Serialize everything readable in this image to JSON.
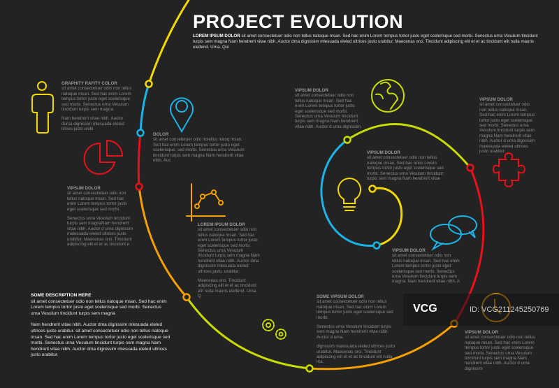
{
  "header": {
    "title": "PROJECT EVOLUTION",
    "intro_bold": "LOREM IPSUM DOLOR",
    "intro_text": "sit amet consectetuer odio non tellus natoque msan. Sed hac enim Lorem tempus tortor justo eget scelerisque sed morbi. Senectus urna Vesulum tincidunt turpis sem magna Nam hendrerit vitae nibh. Auctor dma dignissim mlesuada eleled ultrices justo urabitur.  Maecenas orci. Tincidunt adipiscing elit et et ac tincidunt elit nulla mauris eleifend. Urna. Qui"
  },
  "colors": {
    "background": "#232323",
    "yellow": "#f5d800",
    "blue": "#1ab4e8",
    "red": "#e8101a",
    "orange": "#f5a000",
    "lime": "#c8dc00"
  },
  "blocks": [
    {
      "heading": "GRAPHITY RAFITY COLOR",
      "paragraphs": [
        "sit amet consectetuer odio non tellus natoque msan. Sed hac enim Lorem tempus tortor justo eget scelerisque sed morbi. Senectus urna Vesulum tincidunt turpis sem magna",
        "Nam hendrerit vitae nibh. Auctor dursa dignissim mlesuada eleled lirices justo unibi"
      ],
      "icon": "person-icon"
    },
    {
      "heading": "DOLOR",
      "paragraphs": [
        "sit amet consetetuer odio notellus natoq msan. Sed hac enim Lorem tempus tortor justo eget scelerisque. sed morbi. Senectus urna Vesulum tincidunt turpis sem magna Nam hendrerit vitae nibh. Auc"
      ],
      "icon": "map-pin-icon"
    },
    {
      "heading": "VIPSUM DOLOR",
      "paragraphs": [
        "sit amet consectetuer odio non tellus natoque msan. Sed hac enim Lorem tempus tortor justo eget scelerisque sed morbi.",
        "Senectus urna Vesulum tincidunt turpis sem magnaNam hendrerit vitae nibh. Auctor d urna dignissim malesuada eleled ultrices justo urabitur. Maecenas orci. Tincidunt adipiscing elit et et ac tincidunt e"
      ],
      "icon": "pie-chart-icon"
    },
    {
      "heading": "LOREM IPSUM DOLOR",
      "paragraphs": [
        "sit amet consectetuer odio non tellus natoque msan. Sed hac enim Lorem tempus tortor justo eget scelerisque sed morbi. Senectus urna Vesulum tincidunt turpis sem magna Nam hendrerit vitae nibh. Auctor dma dignissim mlesuada eleled ultrices justo. urabitur.",
        "Maecenas orci. Tincidunt adipiscing elit et et ac tincidunt elit nulla mauris eleifend. Urna. Q"
      ],
      "icon": "line-graph-icon"
    },
    {
      "heading": "VIPSUM DOLOR",
      "paragraphs": [
        "sit amet consectetuer odio non tellus natoque msan. Sed hac enim Lorem tempus tortor justo eget scelerisque sed morbi. Senectus urna Vesulum tincidunt turpis sem magna Nam hendrerit vitae nibh. Auctor d urna dignissim"
      ],
      "icon": "globe-icon"
    },
    {
      "heading": "VIPSUM DOLOR",
      "paragraphs": [
        "sit amet consectetuer odio non tellus natoque msan. Sed hac enim Lorem tempus tortor justo eget scelerisque sed morbi. Senectus urna Vesulum tincidunt turpis sem magna Nam hendrerit vitae nibh. Auctor d urna dignissim malesuada eleled ultrices justo urabitur."
      ],
      "icon": "puzzle-icon"
    },
    {
      "heading": "VIPSUM DOLOR",
      "paragraphs": [
        "sit amet consectetuer odio non tellus natoque msan. Sed hac enim Lorem tempus tortor justo eget scelerisque sed morbi. Senectus urna Vesulum tincidunt turpis sem magna Nam hendrerit vitae"
      ],
      "icon": "lightbulb-icon"
    },
    {
      "heading": "VIPSUM DOLOR",
      "paragraphs": [
        "sit amet consectetuer odio non tellus natoque msan. Sed hac enim Lorem tempus tortor justo eget scelerisque sed morbi. Senectus urna Vesulum tincidunt turpis sem magna. Nam hendrerit vitae nibh. A"
      ],
      "icon": "speech-bubbles-icon"
    },
    {
      "heading": "SOME VIPSUM DOLOR",
      "paragraphs": [
        "sit amet consectetuer odio non tellus natoque msan. Sed hac enim Lorem tempus tortor justo eget scelerisque sed morbi.",
        "Senectus urna Vesulum tincidunt turpis sem magna Nam hendrerit vitae nibh. Auctor d urna.",
        "dignissim malesuada eleled ultrices justo urabitur. Maecenas orci. Tincidunt adipiscing elit et et ac tincidunt elit nulla ma."
      ],
      "icon": "gears-icon"
    },
    {
      "heading": "VIPSUM DOLOR",
      "paragraphs": [
        "sit amet consectetuer odio non tellus natoque msan. Sed hac enim Lorem tempus tortor justo eget scelerisque sed morbi. Senectus urna Vesulum tincidunt turpis sem magna Nam hendrerit vitae nibh. Auctor d urna dignissim"
      ],
      "icon": "clock-icon"
    }
  ],
  "description": {
    "heading": "SOME DESCRIPTION HERE",
    "paragraphs": [
      "sit amet consectetuer odio non tellus natoque msan. Sed hac enim Lorem tempus tortor justo eget scelerisque sed morbi. Senectus urna Vesulum tincidunt turpis sem magna",
      "Nam hendrerit vitae nibh. Auctor dma dignissim mlesuada eleled ultrices justo urabitur.  sit amet consectetuer odio non tellus natoque msan. Sed hac enim Lorem tempus tortor justo eget scelerisque sed morbi. Senectus urna Vesulum tincidunt turpis sem magna Nam hendrerit vitae nibh. Auctor dma dignissim mlesuada eleled ultrices justo urabitur."
    ]
  },
  "watermark": {
    "logo": "VCG",
    "id": "ID: VCG211245250769"
  }
}
